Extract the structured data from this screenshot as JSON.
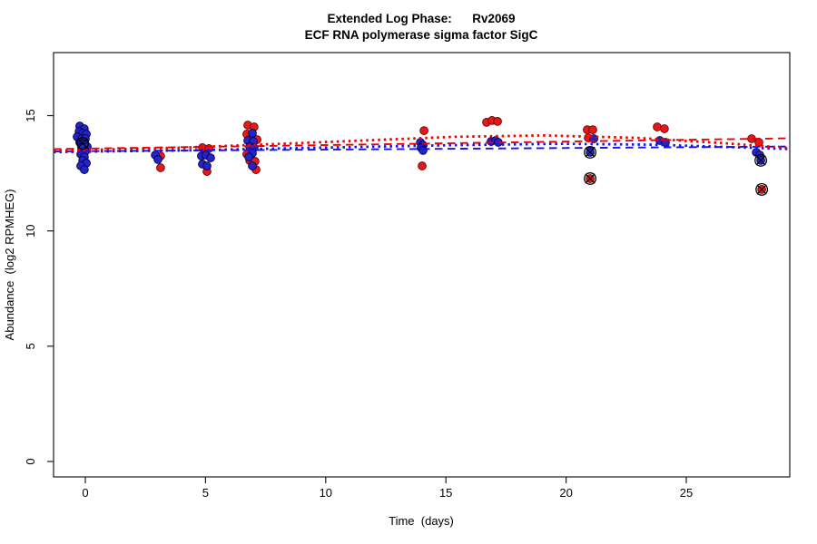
{
  "chart_data": {
    "type": "scatter",
    "title_line1": "Extended Log Phase:      Rv2069",
    "title_line2": "ECF RNA polymerase sigma factor SigC",
    "xlabel": "Time  (days)",
    "ylabel": "Abundance  (log2 RPMHEG)",
    "x_ticks": [
      0,
      5,
      10,
      15,
      20,
      25
    ],
    "y_ticks": [
      0,
      5,
      10,
      15
    ],
    "xlim": [
      -1.32,
      29.31
    ],
    "ylim": [
      -0.67,
      17.74
    ],
    "grid": false,
    "legend": "none",
    "colors": {
      "red_fill": "#e31a1a",
      "red_stroke": "#6b0000",
      "blue_fill": "#2424c8",
      "blue_stroke": "#000046",
      "red_line": "#ee0000",
      "blue_line": "#1414ee",
      "axis": "#1a1a1a",
      "outlier_ring": "#000000"
    },
    "series": [
      {
        "name": "red-condition",
        "color": "#e31a1a",
        "points": [
          [
            3.13,
            13.25
          ],
          [
            3.13,
            12.74
          ],
          [
            4.87,
            13.61
          ],
          [
            5.14,
            13.57
          ],
          [
            5.06,
            12.58
          ],
          [
            6.76,
            14.59
          ],
          [
            7.02,
            14.51
          ],
          [
            6.72,
            14.2
          ],
          [
            7.14,
            13.96
          ],
          [
            6.72,
            13.33
          ],
          [
            6.84,
            13.05
          ],
          [
            7.06,
            13.02
          ],
          [
            7.1,
            12.66
          ],
          [
            14.09,
            14.35
          ],
          [
            14.01,
            12.82
          ],
          [
            16.69,
            14.71
          ],
          [
            16.92,
            14.79
          ],
          [
            17.15,
            14.75
          ],
          [
            20.88,
            14.39
          ],
          [
            21.11,
            14.39
          ],
          [
            20.92,
            14.04
          ],
          [
            21.0,
            12.27
          ],
          [
            23.79,
            14.51
          ],
          [
            24.09,
            14.43
          ],
          [
            27.72,
            14.0
          ],
          [
            28.02,
            13.84
          ],
          [
            28.14,
            11.8
          ]
        ]
      },
      {
        "name": "blue-condition",
        "color": "#2424c8",
        "points": [
          [
            -0.23,
            14.55
          ],
          [
            -0.04,
            14.43
          ],
          [
            -0.26,
            14.31
          ],
          [
            -0.11,
            14.24
          ],
          [
            0.04,
            14.2
          ],
          [
            -0.34,
            14.08
          ],
          [
            -0.15,
            14.0
          ],
          [
            0.0,
            14.0
          ],
          [
            -0.23,
            13.84
          ],
          [
            -0.11,
            13.8
          ],
          [
            -0.04,
            13.76
          ],
          [
            0.08,
            13.65
          ],
          [
            -0.15,
            13.61
          ],
          [
            0.0,
            13.45
          ],
          [
            -0.19,
            13.33
          ],
          [
            -0.04,
            13.21
          ],
          [
            -0.11,
            13.05
          ],
          [
            0.04,
            12.94
          ],
          [
            -0.19,
            12.82
          ],
          [
            -0.04,
            12.66
          ],
          [
            2.91,
            13.29
          ],
          [
            3.02,
            13.1
          ],
          [
            4.83,
            13.25
          ],
          [
            5.02,
            13.29
          ],
          [
            5.21,
            13.17
          ],
          [
            4.87,
            12.9
          ],
          [
            5.06,
            12.82
          ],
          [
            6.95,
            14.24
          ],
          [
            6.76,
            13.92
          ],
          [
            6.99,
            13.88
          ],
          [
            6.84,
            13.65
          ],
          [
            7.02,
            13.61
          ],
          [
            6.95,
            13.37
          ],
          [
            6.8,
            13.21
          ],
          [
            6.95,
            12.82
          ],
          [
            13.94,
            13.84
          ],
          [
            14.05,
            13.72
          ],
          [
            13.97,
            13.61
          ],
          [
            14.05,
            13.49
          ],
          [
            16.88,
            13.88
          ],
          [
            17.07,
            13.92
          ],
          [
            17.18,
            13.84
          ],
          [
            21.15,
            14.0
          ],
          [
            21.0,
            13.41
          ],
          [
            23.9,
            13.92
          ],
          [
            24.13,
            13.84
          ],
          [
            27.91,
            13.41
          ],
          [
            28.06,
            13.29
          ],
          [
            28.1,
            13.06
          ]
        ]
      }
    ],
    "outlier_marks": [
      [
        -0.11,
        13.8
      ],
      [
        21.0,
        13.41
      ],
      [
        21.0,
        12.27
      ],
      [
        28.1,
        13.06
      ],
      [
        28.14,
        11.8
      ]
    ],
    "trend_lines": [
      {
        "name": "blue-linear-fit",
        "style": "dashed",
        "color": "#1414ee",
        "points": [
          [
            -1.32,
            13.45
          ],
          [
            29.31,
            13.66
          ]
        ]
      },
      {
        "name": "red-linear-fit",
        "style": "dashed",
        "color": "#ee0000",
        "points": [
          [
            -1.32,
            13.55
          ],
          [
            29.31,
            14.02
          ]
        ]
      },
      {
        "name": "blue-smooth-fit",
        "style": "dotted",
        "color": "#1414ee",
        "points": [
          [
            -1.32,
            13.42
          ],
          [
            4.0,
            13.49
          ],
          [
            9.67,
            13.61
          ],
          [
            15.33,
            13.72
          ],
          [
            19.86,
            13.78
          ],
          [
            23.64,
            13.74
          ],
          [
            26.66,
            13.64
          ],
          [
            29.31,
            13.55
          ]
        ]
      },
      {
        "name": "red-smooth-fit",
        "style": "dotted",
        "color": "#ee0000",
        "points": [
          [
            -1.32,
            13.48
          ],
          [
            4.0,
            13.61
          ],
          [
            9.67,
            13.84
          ],
          [
            15.33,
            14.08
          ],
          [
            19.11,
            14.14
          ],
          [
            22.89,
            14.04
          ],
          [
            26.66,
            13.8
          ],
          [
            29.31,
            13.59
          ]
        ]
      }
    ]
  }
}
